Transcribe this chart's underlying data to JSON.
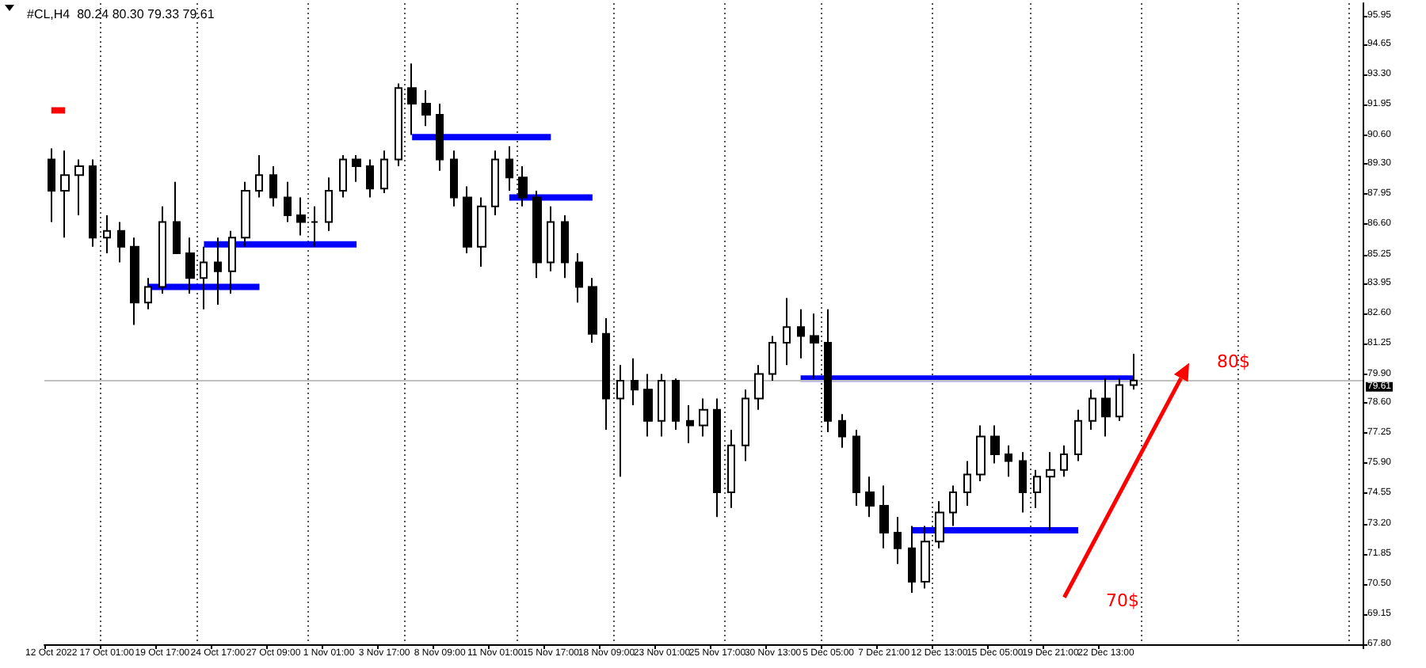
{
  "chart_data": {
    "type": "candlestick",
    "title": "#CL,H4  80.24 80.30 79.33 79.61",
    "categories": [
      "12 Oct 2022",
      null,
      null,
      null,
      "17 Oct 01:00",
      null,
      null,
      null,
      "19 Oct 17:00",
      null,
      null,
      null,
      "24 Oct 17:00",
      null,
      null,
      null,
      "27 Oct 09:00",
      null,
      null,
      null,
      "1 Nov 01:00",
      null,
      null,
      null,
      "3 Nov 17:00",
      null,
      null,
      null,
      "8 Nov 09:00",
      null,
      null,
      null,
      "11 Nov 01:00",
      null,
      null,
      null,
      "15 Nov 17:00",
      null,
      null,
      null,
      "18 Nov 09:00",
      null,
      null,
      null,
      "23 Nov 01:00",
      null,
      null,
      null,
      "25 Nov 17:00",
      null,
      null,
      null,
      "30 Nov 13:00",
      null,
      null,
      null,
      "5 Dec 05:00",
      null,
      null,
      null,
      "7 Dec 21:00",
      null,
      null,
      null,
      "12 Dec 13:00",
      null,
      null,
      null,
      "15 Dec 05:00",
      null,
      null,
      null,
      "19 Dec 21:00",
      null,
      null,
      null,
      "22 Dec 13:00",
      null,
      null,
      null,
      null,
      null,
      null,
      null,
      null,
      null,
      null,
      null,
      null,
      null,
      null,
      null,
      null,
      null,
      null
    ],
    "series": [
      {
        "color": "#000000",
        "ohlc": [
          [
            89.5,
            90.0,
            86.7,
            88.1
          ],
          [
            88.1,
            89.9,
            86.0,
            88.8
          ],
          [
            88.8,
            89.5,
            87.0,
            89.2
          ],
          [
            89.2,
            89.5,
            85.6,
            86.0
          ],
          [
            86.0,
            87.0,
            85.3,
            86.3
          ],
          [
            86.3,
            86.7,
            84.9,
            85.6
          ],
          [
            85.6,
            86.0,
            82.1,
            83.1
          ],
          [
            83.1,
            84.2,
            82.8,
            83.8
          ],
          [
            83.8,
            87.4,
            83.5,
            86.7
          ],
          [
            86.7,
            88.5,
            85.3,
            85.3
          ],
          [
            85.3,
            86.0,
            83.5,
            84.2
          ],
          [
            84.2,
            85.6,
            82.8,
            84.9
          ],
          [
            84.9,
            86.0,
            83.0,
            84.5
          ],
          [
            84.5,
            86.3,
            83.5,
            86.0
          ],
          [
            86.0,
            88.5,
            85.6,
            88.1
          ],
          [
            88.1,
            89.7,
            87.8,
            88.8
          ],
          [
            88.8,
            89.2,
            87.4,
            87.8
          ],
          [
            87.8,
            88.5,
            86.7,
            87.0
          ],
          [
            87.0,
            87.8,
            86.1,
            86.7
          ],
          [
            86.7,
            87.4,
            85.6,
            86.7
          ],
          [
            86.7,
            88.7,
            86.3,
            88.1
          ],
          [
            88.1,
            89.7,
            87.8,
            89.5
          ],
          [
            89.5,
            89.7,
            88.5,
            89.2
          ],
          [
            89.2,
            89.5,
            87.8,
            88.2
          ],
          [
            88.2,
            89.9,
            88.0,
            89.5
          ],
          [
            89.5,
            92.9,
            89.2,
            92.7
          ],
          [
            92.7,
            93.8,
            90.6,
            92.0
          ],
          [
            92.0,
            92.6,
            91.0,
            91.5
          ],
          [
            91.5,
            92.0,
            89.0,
            89.5
          ],
          [
            89.5,
            89.9,
            87.4,
            87.8
          ],
          [
            87.8,
            88.3,
            85.3,
            85.6
          ],
          [
            85.6,
            87.8,
            84.7,
            87.4
          ],
          [
            87.4,
            89.9,
            87.0,
            89.5
          ],
          [
            89.5,
            90.1,
            88.1,
            88.7
          ],
          [
            88.7,
            89.2,
            87.4,
            87.8
          ],
          [
            87.8,
            88.1,
            84.2,
            84.9
          ],
          [
            84.9,
            87.4,
            84.5,
            86.7
          ],
          [
            86.7,
            87.0,
            84.2,
            84.9
          ],
          [
            84.9,
            85.3,
            83.1,
            83.8
          ],
          [
            83.8,
            84.2,
            81.3,
            81.7
          ],
          [
            81.7,
            82.4,
            77.4,
            78.8
          ],
          [
            78.8,
            80.3,
            75.3,
            79.6
          ],
          [
            79.6,
            80.6,
            78.5,
            79.2
          ],
          [
            79.2,
            79.9,
            77.1,
            77.8
          ],
          [
            77.8,
            79.9,
            77.1,
            79.6
          ],
          [
            79.6,
            79.7,
            77.4,
            77.8
          ],
          [
            77.8,
            78.5,
            76.8,
            77.6
          ],
          [
            77.6,
            78.8,
            77.1,
            78.3
          ],
          [
            78.3,
            78.8,
            73.5,
            74.6
          ],
          [
            74.6,
            77.4,
            73.9,
            76.7
          ],
          [
            76.7,
            79.2,
            76.0,
            78.8
          ],
          [
            78.8,
            80.3,
            78.3,
            79.9
          ],
          [
            79.9,
            81.6,
            79.6,
            81.3
          ],
          [
            81.3,
            83.3,
            80.3,
            82.0
          ],
          [
            82.0,
            82.8,
            80.6,
            81.6
          ],
          [
            81.6,
            82.6,
            79.7,
            81.3
          ],
          [
            81.3,
            82.8,
            77.3,
            77.8
          ],
          [
            77.8,
            78.1,
            76.6,
            77.1
          ],
          [
            77.1,
            77.4,
            74.0,
            74.6
          ],
          [
            74.6,
            75.3,
            73.5,
            74.0
          ],
          [
            74.0,
            74.9,
            72.1,
            72.8
          ],
          [
            72.8,
            73.5,
            71.4,
            72.1
          ],
          [
            72.1,
            73.1,
            70.1,
            70.6
          ],
          [
            70.6,
            73.1,
            70.3,
            72.4
          ],
          [
            72.4,
            74.2,
            72.1,
            73.7
          ],
          [
            73.7,
            74.9,
            73.1,
            74.6
          ],
          [
            74.6,
            76.0,
            74.0,
            75.4
          ],
          [
            75.4,
            77.6,
            75.1,
            77.1
          ],
          [
            77.1,
            77.6,
            75.9,
            76.3
          ],
          [
            76.3,
            76.7,
            75.3,
            76.0
          ],
          [
            76.0,
            76.4,
            73.7,
            74.6
          ],
          [
            74.6,
            75.6,
            73.9,
            75.3
          ],
          [
            75.3,
            76.4,
            72.9,
            75.6
          ],
          [
            75.6,
            76.7,
            75.3,
            76.3
          ],
          [
            76.3,
            78.3,
            76.0,
            77.8
          ],
          [
            77.8,
            79.2,
            77.4,
            78.8
          ],
          [
            78.8,
            79.7,
            77.1,
            78.0
          ],
          [
            78.0,
            79.7,
            77.8,
            79.4
          ],
          [
            79.4,
            80.8,
            79.2,
            79.61
          ],
          null,
          null,
          null,
          null,
          null,
          null,
          null,
          null,
          null,
          null,
          null,
          null,
          null,
          null,
          null,
          null
        ]
      },
      {
        "type": "line",
        "color": "#ff0000",
        "values": [
          91.7,
          91.7,
          null,
          null,
          null,
          null,
          null,
          null,
          null,
          null,
          null,
          null,
          null,
          null,
          null,
          null,
          null,
          null,
          null,
          null,
          null,
          null,
          null,
          null,
          null,
          null,
          null,
          null,
          null,
          null,
          null,
          null,
          null,
          null,
          null,
          null,
          null,
          null,
          null,
          null,
          null,
          null,
          null,
          null,
          null,
          null,
          null,
          null,
          null,
          null,
          null,
          null,
          null,
          null,
          null,
          null,
          null,
          null,
          null,
          null,
          null,
          null,
          null,
          null,
          null,
          null,
          null,
          null,
          null,
          null,
          null,
          null,
          null,
          null,
          null,
          null,
          null,
          null,
          null,
          null,
          null,
          null,
          null,
          null,
          null,
          null,
          null,
          null,
          null,
          null,
          null,
          null,
          null,
          null,
          null
        ]
      },
      {
        "type": "line",
        "color": "#0000ff",
        "values": [
          null,
          null,
          null,
          null,
          null,
          null,
          null,
          83.8,
          83.8,
          83.8,
          83.8,
          83.8,
          83.8,
          83.8,
          83.8,
          83.8,
          null,
          null,
          null,
          null,
          null,
          null,
          null,
          null,
          null,
          null,
          null,
          null,
          null,
          null,
          null,
          null,
          null,
          null,
          null,
          null,
          null,
          null,
          null,
          null,
          null,
          null,
          null,
          null,
          null,
          null,
          null,
          null,
          null,
          null,
          null,
          null,
          null,
          null,
          null,
          null,
          null,
          null,
          null,
          null,
          null,
          null,
          null,
          null,
          null,
          null,
          null,
          null,
          null,
          null,
          null,
          null,
          null,
          null,
          null,
          null,
          null,
          null,
          null,
          null,
          null,
          null,
          null,
          null,
          null,
          null,
          null,
          null,
          null,
          null,
          null,
          null,
          null,
          null,
          null
        ]
      },
      {
        "type": "line",
        "color": "#0000ff",
        "values": [
          null,
          null,
          null,
          null,
          null,
          null,
          null,
          null,
          null,
          null,
          null,
          85.7,
          85.7,
          85.7,
          85.7,
          85.7,
          85.7,
          85.7,
          85.7,
          85.7,
          85.7,
          85.7,
          85.7,
          null,
          null,
          null,
          null,
          null,
          null,
          null,
          null,
          null,
          null,
          null,
          null,
          null,
          null,
          null,
          null,
          null,
          null,
          null,
          null,
          null,
          null,
          null,
          null,
          null,
          null,
          null,
          null,
          null,
          null,
          null,
          null,
          null,
          null,
          null,
          null,
          null,
          null,
          null,
          null,
          null,
          null,
          null,
          null,
          null,
          null,
          null,
          null,
          null,
          null,
          null,
          null,
          null,
          null,
          null,
          null,
          null,
          null,
          null,
          null,
          null,
          null,
          null,
          null,
          null,
          null,
          null,
          null,
          null,
          null,
          null,
          null
        ]
      },
      {
        "type": "line",
        "color": "#0000ff",
        "values": [
          null,
          null,
          null,
          null,
          null,
          null,
          null,
          null,
          null,
          null,
          null,
          null,
          null,
          null,
          null,
          null,
          null,
          null,
          null,
          null,
          null,
          null,
          null,
          null,
          null,
          null,
          90.5,
          90.5,
          90.5,
          90.5,
          90.5,
          90.5,
          90.5,
          90.5,
          90.5,
          90.5,
          90.5,
          null,
          null,
          null,
          null,
          null,
          null,
          null,
          null,
          null,
          null,
          null,
          null,
          null,
          null,
          null,
          null,
          null,
          null,
          null,
          null,
          null,
          null,
          null,
          null,
          null,
          null,
          null,
          null,
          null,
          null,
          null,
          null,
          null,
          null,
          null,
          null,
          null,
          null,
          null,
          null,
          null,
          null,
          null,
          null,
          null,
          null,
          null,
          null,
          null,
          null,
          null,
          null,
          null,
          null,
          null,
          null,
          null,
          null
        ]
      },
      {
        "type": "line",
        "color": "#0000ff",
        "values": [
          null,
          null,
          null,
          null,
          null,
          null,
          null,
          null,
          null,
          null,
          null,
          null,
          null,
          null,
          null,
          null,
          null,
          null,
          null,
          null,
          null,
          null,
          null,
          null,
          null,
          null,
          null,
          null,
          null,
          null,
          null,
          null,
          null,
          87.8,
          87.8,
          87.8,
          87.8,
          87.8,
          87.8,
          87.8,
          null,
          null,
          null,
          null,
          null,
          null,
          null,
          null,
          null,
          null,
          null,
          null,
          null,
          null,
          null,
          null,
          null,
          null,
          null,
          null,
          null,
          null,
          null,
          null,
          null,
          null,
          null,
          null,
          null,
          null,
          null,
          null,
          null,
          null,
          null,
          null,
          null,
          null,
          null,
          null,
          null,
          null,
          null,
          null,
          null,
          null,
          null,
          null,
          null,
          null,
          null,
          null,
          null,
          null,
          null
        ]
      },
      {
        "type": "line",
        "color": "#0000ff",
        "values": [
          null,
          null,
          null,
          null,
          null,
          null,
          null,
          null,
          null,
          null,
          null,
          null,
          null,
          null,
          null,
          null,
          null,
          null,
          null,
          null,
          null,
          null,
          null,
          null,
          null,
          null,
          null,
          null,
          null,
          null,
          null,
          null,
          null,
          null,
          null,
          null,
          null,
          null,
          null,
          null,
          null,
          null,
          null,
          null,
          null,
          null,
          null,
          null,
          null,
          null,
          null,
          null,
          null,
          null,
          79.7,
          79.7,
          79.7,
          79.7,
          79.7,
          79.7,
          79.7,
          79.7,
          79.7,
          79.7,
          79.7,
          79.7,
          79.7,
          79.7,
          79.7,
          79.7,
          79.7,
          79.7,
          79.7,
          79.7,
          79.7,
          79.7,
          79.7,
          79.7,
          79.7,
          null,
          null,
          null,
          null,
          null,
          null,
          null,
          null,
          null,
          null,
          null,
          null,
          null,
          null,
          null,
          null
        ]
      },
      {
        "type": "line",
        "color": "#0000ff",
        "values": [
          null,
          null,
          null,
          null,
          null,
          null,
          null,
          null,
          null,
          null,
          null,
          null,
          null,
          null,
          null,
          null,
          null,
          null,
          null,
          null,
          null,
          null,
          null,
          null,
          null,
          null,
          null,
          null,
          null,
          null,
          null,
          null,
          null,
          null,
          null,
          null,
          null,
          null,
          null,
          null,
          null,
          null,
          null,
          null,
          null,
          null,
          null,
          null,
          null,
          null,
          null,
          null,
          null,
          null,
          null,
          null,
          null,
          null,
          null,
          null,
          null,
          null,
          72.9,
          72.9,
          72.9,
          72.9,
          72.9,
          72.9,
          72.9,
          72.9,
          72.9,
          72.9,
          72.9,
          72.9,
          72.9,
          null,
          null,
          null,
          null,
          null,
          null,
          null,
          null,
          null,
          null,
          null,
          null,
          null,
          null,
          null,
          null,
          null,
          null,
          null,
          null
        ]
      }
    ],
    "ylim": [
      67.8,
      96.5
    ],
    "yticks": [
      95.95,
      94.65,
      {
        "value": 93.3,
        "label": "93.30"
      },
      91.95,
      {
        "value": 90.6,
        "label": "90.60"
      },
      {
        "value": 89.3,
        "label": "89.30"
      },
      87.95,
      {
        "value": 86.6,
        "label": "86.60"
      },
      85.25,
      83.95,
      {
        "value": 82.6,
        "label": "82.60"
      },
      81.25,
      {
        "value": 79.9,
        "label": "79.90"
      },
      {
        "value": 78.6,
        "label": "78.60"
      },
      77.25,
      {
        "value": 75.9,
        "label": "75.90"
      },
      74.55,
      {
        "value": 73.2,
        "label": "73.20"
      },
      71.85,
      {
        "value": 70.5,
        "label": "70.50"
      },
      69.15,
      {
        "value": 67.8,
        "label": "67.80"
      }
    ],
    "ref_lines": [
      {
        "axis": "y",
        "value": 79.61,
        "label": "79.61",
        "color": "#c0c0c0"
      }
    ],
    "annotations": [
      "70$",
      "80$"
    ],
    "grid": "x",
    "marker": "none"
  }
}
